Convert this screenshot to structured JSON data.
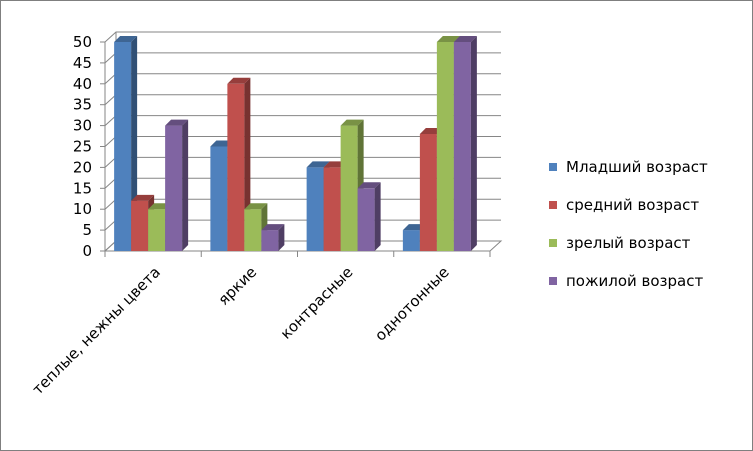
{
  "chart_data": {
    "type": "bar",
    "title": "",
    "xlabel": "",
    "ylabel": "",
    "categories": [
      "теплые, нежны цвета",
      "яркие",
      "контрасные",
      "однотонные"
    ],
    "series": [
      {
        "name": "Младший возраст",
        "color": "#4f81bd",
        "values": [
          50,
          25,
          20,
          5
        ]
      },
      {
        "name": "средний возраст",
        "color": "#c0504d",
        "values": [
          12,
          40,
          20,
          28
        ]
      },
      {
        "name": "зрелый возраст",
        "color": "#9bbb59",
        "values": [
          10,
          10,
          30,
          50
        ]
      },
      {
        "name": "пожилой возраст",
        "color": "#8064a2",
        "values": [
          30,
          5,
          15,
          50
        ]
      }
    ],
    "ylim": [
      0,
      50
    ],
    "yticks": [
      "0",
      "5",
      "10",
      "15",
      "20",
      "25",
      "30",
      "35",
      "40",
      "45",
      "50"
    ],
    "grid": true,
    "legend_position": "right",
    "style": "3d-clustered-column"
  }
}
